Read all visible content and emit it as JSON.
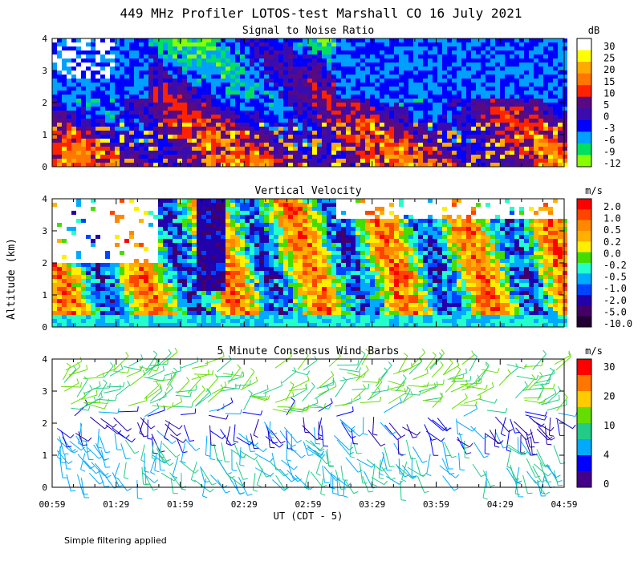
{
  "title": "449 MHz Profiler LOTOS-test Marshall CO 16 July 2021",
  "footnote": "Simple filtering applied",
  "chart_data": [
    {
      "type": "heatmap",
      "id": "snr",
      "title": "Signal to Noise Ratio",
      "colorbar_unit": "dB",
      "colorbar_labels": [
        "30",
        "25",
        "20",
        "15",
        "10",
        "5",
        "0",
        "-3",
        "-6",
        "-9",
        "-12"
      ],
      "colorbar_colors": [
        "#ffffff",
        "#ffff00",
        "#ffaa00",
        "#ff7700",
        "#ff2200",
        "#5a0a80",
        "#3a0cb0",
        "#0000ff",
        "#00a0ff",
        "#00e060",
        "#88ff00"
      ],
      "ylabel": "",
      "ylim": [
        0,
        4
      ],
      "yticks": [
        "0",
        "1",
        "2",
        "3",
        "4"
      ],
      "xlim": [
        "00:59",
        "04:59"
      ]
    },
    {
      "type": "heatmap",
      "id": "vvel",
      "title": "Vertical Velocity",
      "colorbar_unit": "m/s",
      "colorbar_labels": [
        "2.0",
        "1.0",
        "0.5",
        "0.2",
        "0.0",
        "-0.2",
        "-0.5",
        "-1.0",
        "-2.0",
        "-5.0",
        "-10.0"
      ],
      "colorbar_colors": [
        "#ff0000",
        "#ff4400",
        "#ff8800",
        "#ffb000",
        "#ffee00",
        "#44dd00",
        "#22ffcc",
        "#00aaff",
        "#0044ff",
        "#2200aa",
        "#440066",
        "#220033"
      ],
      "ylabel": "Altitude (km)",
      "ylim": [
        0,
        4
      ],
      "yticks": [
        "0",
        "1",
        "2",
        "3",
        "4"
      ],
      "xlim": [
        "00:59",
        "04:59"
      ]
    },
    {
      "type": "scatter",
      "id": "wind",
      "title": "5 Minute Consensus Wind Barbs",
      "colorbar_unit": "m/s",
      "colorbar_labels": [
        "30",
        "20",
        "10",
        "4",
        "0"
      ],
      "colorbar_colors": [
        "#ff0000",
        "#ff7700",
        "#ffcc00",
        "#66dd00",
        "#22cc88",
        "#00aaff",
        "#0000ff",
        "#440088"
      ],
      "ylabel": "",
      "ylim": [
        0,
        4
      ],
      "yticks": [
        "0",
        "1",
        "2",
        "3",
        "4"
      ],
      "xlabel": "UT  (CDT - 5)",
      "xticks": [
        "00:59",
        "01:29",
        "01:59",
        "02:29",
        "02:59",
        "03:29",
        "03:59",
        "04:29",
        "04:59"
      ]
    }
  ]
}
